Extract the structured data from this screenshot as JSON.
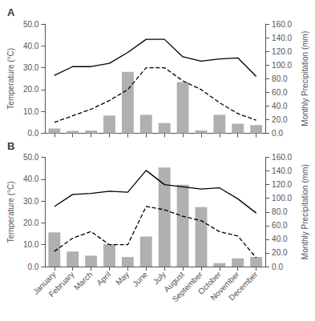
{
  "chart_data": [
    {
      "type": "bar",
      "title": "A",
      "categories": [
        null,
        null,
        null,
        null,
        null,
        null,
        null,
        null,
        null,
        null,
        null,
        null
      ],
      "ylabel": "Temperature (°C)",
      "y2label": "Monthly Precipitation (mm)",
      "ylim": [
        0.0,
        50.0
      ],
      "yticks": [
        {
          "value": 0,
          "label": "0.0"
        },
        {
          "value": 10,
          "label": "10.0"
        },
        {
          "value": 20,
          "label": "20.0"
        },
        {
          "value": 30,
          "label": "30.0"
        },
        {
          "value": 40,
          "label": "40.0"
        },
        {
          "value": 50,
          "label": "50.0"
        }
      ],
      "y2lim": [
        0.0,
        160.0
      ],
      "y2ticks": [
        {
          "value": 0,
          "label": "0.0"
        },
        {
          "value": 20,
          "label": "20.0"
        },
        {
          "value": 40,
          "label": "40.0"
        },
        {
          "value": 60,
          "label": "60.0"
        },
        {
          "value": 80,
          "label": "80.0"
        },
        {
          "value": 100,
          "label": "100.0"
        },
        {
          "value": 120,
          "label": "120.0"
        },
        {
          "value": 140,
          "label": "140.0"
        },
        {
          "value": 160,
          "label": "160.0"
        }
      ],
      "grid": false,
      "series": [
        {
          "type": "bar",
          "axis": "y2",
          "color": "#b0b0b0",
          "values": [
            7.0,
            3.5,
            4.0,
            26.0,
            90.0,
            27.0,
            15.0,
            75.0,
            4.0,
            27.0,
            14.0,
            12.0
          ]
        },
        {
          "type": "line",
          "color": "#000000",
          "line_style": "solid",
          "values": [
            26.5,
            30.5,
            30.5,
            32.0,
            37.0,
            43.0,
            43.0,
            35.0,
            33.0,
            34.0,
            34.5,
            26.0
          ]
        },
        {
          "type": "line",
          "color": "#000000",
          "line_style": "dashed",
          "values": [
            5.0,
            8.0,
            11.0,
            15.0,
            20.0,
            30.0,
            30.0,
            24.0,
            20.0,
            14.0,
            9.0,
            6.0
          ]
        }
      ]
    },
    {
      "type": "bar",
      "title": "B",
      "categories": [
        "January",
        "February",
        "March",
        "April",
        "May",
        "June",
        "July",
        "August",
        "September",
        "October",
        "November",
        "December"
      ],
      "ylabel": "Temperature (°C)",
      "y2label": "Monthly Precipitation (mm)",
      "ylim": [
        0.0,
        50.0
      ],
      "yticks": [
        {
          "value": 0,
          "label": "0.0"
        },
        {
          "value": 10,
          "label": "10.0"
        },
        {
          "value": 20,
          "label": "20.0"
        },
        {
          "value": 30,
          "label": "30.0"
        },
        {
          "value": 40,
          "label": "40.0"
        },
        {
          "value": 50,
          "label": "50.0"
        }
      ],
      "y2lim": [
        0.0,
        160.0
      ],
      "y2ticks": [
        {
          "value": 0,
          "label": "0.0"
        },
        {
          "value": 20,
          "label": "20.0"
        },
        {
          "value": 40,
          "label": "40.0"
        },
        {
          "value": 60,
          "label": "60.0"
        },
        {
          "value": 80,
          "label": "80.0"
        },
        {
          "value": 100,
          "label": "100.0"
        },
        {
          "value": 120,
          "label": "120.0"
        },
        {
          "value": 140,
          "label": "140.0"
        },
        {
          "value": 160,
          "label": "160.0"
        }
      ],
      "grid": false,
      "series": [
        {
          "type": "bar",
          "axis": "y2",
          "color": "#b0b0b0",
          "values": [
            50.0,
            22.0,
            16.0,
            33.0,
            14.0,
            44.0,
            145.0,
            120.0,
            87.0,
            5.0,
            12.0,
            14.0
          ]
        },
        {
          "type": "line",
          "color": "#000000",
          "line_style": "solid",
          "values": [
            27.5,
            33.0,
            33.5,
            34.5,
            34.0,
            44.0,
            37.5,
            36.5,
            35.5,
            36.0,
            31.0,
            24.5
          ]
        },
        {
          "type": "line",
          "color": "#000000",
          "line_style": "dashed",
          "values": [
            7.0,
            13.0,
            16.0,
            10.0,
            10.0,
            27.5,
            26.0,
            23.0,
            21.0,
            16.0,
            14.0,
            4.0
          ]
        }
      ]
    }
  ]
}
